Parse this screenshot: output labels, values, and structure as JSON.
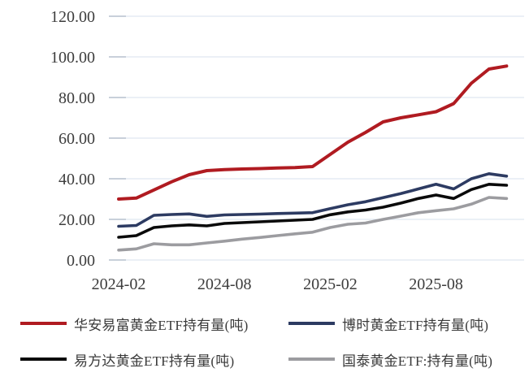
{
  "chart_data": {
    "type": "line",
    "title": "",
    "xlabel": "",
    "ylabel": "",
    "grid": "horizontal",
    "legend_position": "bottom",
    "ylim": [
      0,
      120
    ],
    "y_tick_labels": [
      "0.00",
      "20.00",
      "40.00",
      "60.00",
      "80.00",
      "100.00",
      "120.00"
    ],
    "y_tick_values": [
      0,
      20,
      40,
      60,
      80,
      100,
      120
    ],
    "x": [
      "2024-02",
      "2024-03",
      "2024-04",
      "2024-05",
      "2024-06",
      "2024-07",
      "2024-08",
      "2024-09",
      "2024-10",
      "2024-11",
      "2024-12",
      "2025-01",
      "2025-02",
      "2025-03",
      "2025-04",
      "2025-05",
      "2025-06",
      "2025-07",
      "2025-08",
      "2025-09",
      "2025-10",
      "2025-11",
      "2025-12"
    ],
    "x_tick_labels": [
      "2024-02",
      "2024-08",
      "2025-02",
      "2025-08"
    ],
    "x_tick_indices": [
      0,
      6,
      12,
      18
    ],
    "series": [
      {
        "name": "华安易富黄金ETF持有量(吨)",
        "color": "#b01b21",
        "values": [
          30.0,
          30.5,
          34.5,
          38.5,
          42.0,
          44.0,
          44.5,
          44.8,
          45.0,
          45.3,
          45.5,
          46.0,
          52.0,
          58.0,
          62.8,
          68.0,
          70.0,
          71.5,
          73.0,
          77.0,
          87.0,
          94.0,
          95.5
        ]
      },
      {
        "name": "博时黄金ETF持有量(吨)",
        "color": "#2d3b62",
        "values": [
          16.6,
          17.0,
          22.0,
          22.4,
          22.7,
          21.5,
          22.2,
          22.4,
          22.6,
          22.9,
          23.1,
          23.3,
          25.3,
          27.2,
          28.7,
          30.7,
          32.7,
          35.0,
          37.3,
          35.0,
          40.0,
          42.5,
          41.3
        ]
      },
      {
        "name": "易方达黄金ETF持有量(吨)",
        "color": "#0a0a0a",
        "values": [
          11.2,
          12.0,
          16.0,
          16.8,
          17.3,
          16.8,
          18.0,
          18.4,
          18.8,
          19.2,
          19.6,
          20.0,
          22.3,
          23.7,
          24.6,
          26.0,
          28.0,
          30.3,
          32.0,
          30.3,
          34.7,
          37.3,
          36.8
        ]
      },
      {
        "name": "国泰黄金ETF:持有量(吨)",
        "color": "#9c9ca0",
        "values": [
          4.9,
          5.5,
          8.0,
          7.5,
          7.5,
          8.4,
          9.3,
          10.3,
          11.1,
          12.0,
          12.9,
          13.7,
          16.0,
          17.6,
          18.2,
          20.0,
          21.6,
          23.3,
          24.3,
          25.2,
          27.5,
          30.8,
          30.3
        ]
      }
    ],
    "style": {
      "gridline_color": "#dfe7f0",
      "tick_color": "#b9c2cf",
      "axis_label_color": "#3d3d3d",
      "background": "#ffffff"
    }
  }
}
